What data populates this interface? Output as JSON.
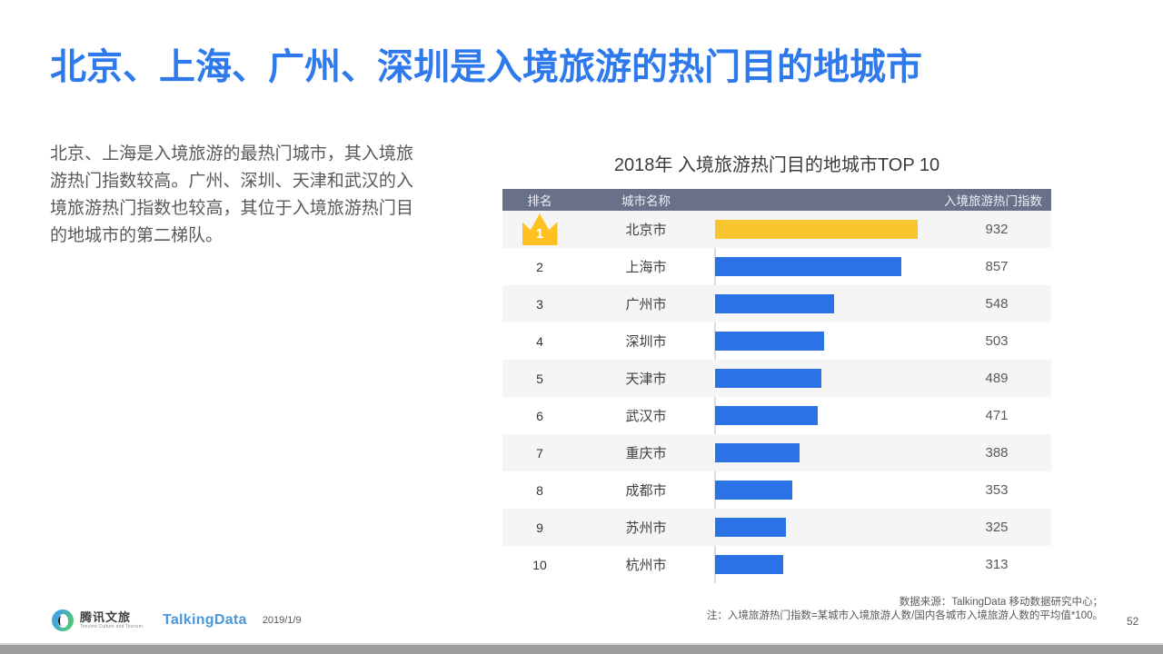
{
  "slide": {
    "title": "北京、上海、广州、深圳是入境旅游的热门目的地城市",
    "body_paragraph": "北京、上海是入境旅游的最热门城市，其入境旅游热门指数较高。广州、深圳、天津和武汉的入境旅游热门指数也较高，其位于入境旅游热门目的地城市的第二梯队。",
    "page_number": "52"
  },
  "chart_data": {
    "type": "bar",
    "orientation": "horizontal",
    "title": "2018年 入境旅游热门目的地城市TOP 10",
    "columns": [
      "排名",
      "城市名称",
      "入境旅游热门指数"
    ],
    "ranks": [
      1,
      2,
      3,
      4,
      5,
      6,
      7,
      8,
      9,
      10
    ],
    "categories": [
      "北京市",
      "上海市",
      "广州市",
      "深圳市",
      "天津市",
      "武汉市",
      "重庆市",
      "成都市",
      "苏州市",
      "杭州市"
    ],
    "values": [
      932,
      857,
      548,
      503,
      489,
      471,
      388,
      353,
      325,
      313
    ],
    "xlim": [
      0,
      1045
    ],
    "highlight_rank": 1,
    "bar_colors": {
      "highlight": "#F9C52F",
      "default": "#2B72E7"
    },
    "row_stripe": "even rows shaded #f5f5f6",
    "legend_position": "none",
    "grid": "off"
  },
  "footer": {
    "tencent_logo_text": "腾讯文旅",
    "tencent_logo_subtext": "Tencent Culture and Tourism",
    "talkingdata_logo_text": "TalkingData",
    "date": "2019/1/9",
    "source_note_line1": "数据来源：TalkingData  移动数据研究中心；",
    "source_note_line2": "注：入境旅游热门指数=某城市入境旅游人数/国内各城市入境旅游人数的平均值*100。"
  },
  "colors": {
    "title_accent": "#2E79EC",
    "table_header_bg": "#697189",
    "bar_blue": "#2B72E7",
    "bar_yellow": "#F9C52F",
    "crown_gold": "#FFC121",
    "talkingdata_blue": "#4A97DC"
  }
}
